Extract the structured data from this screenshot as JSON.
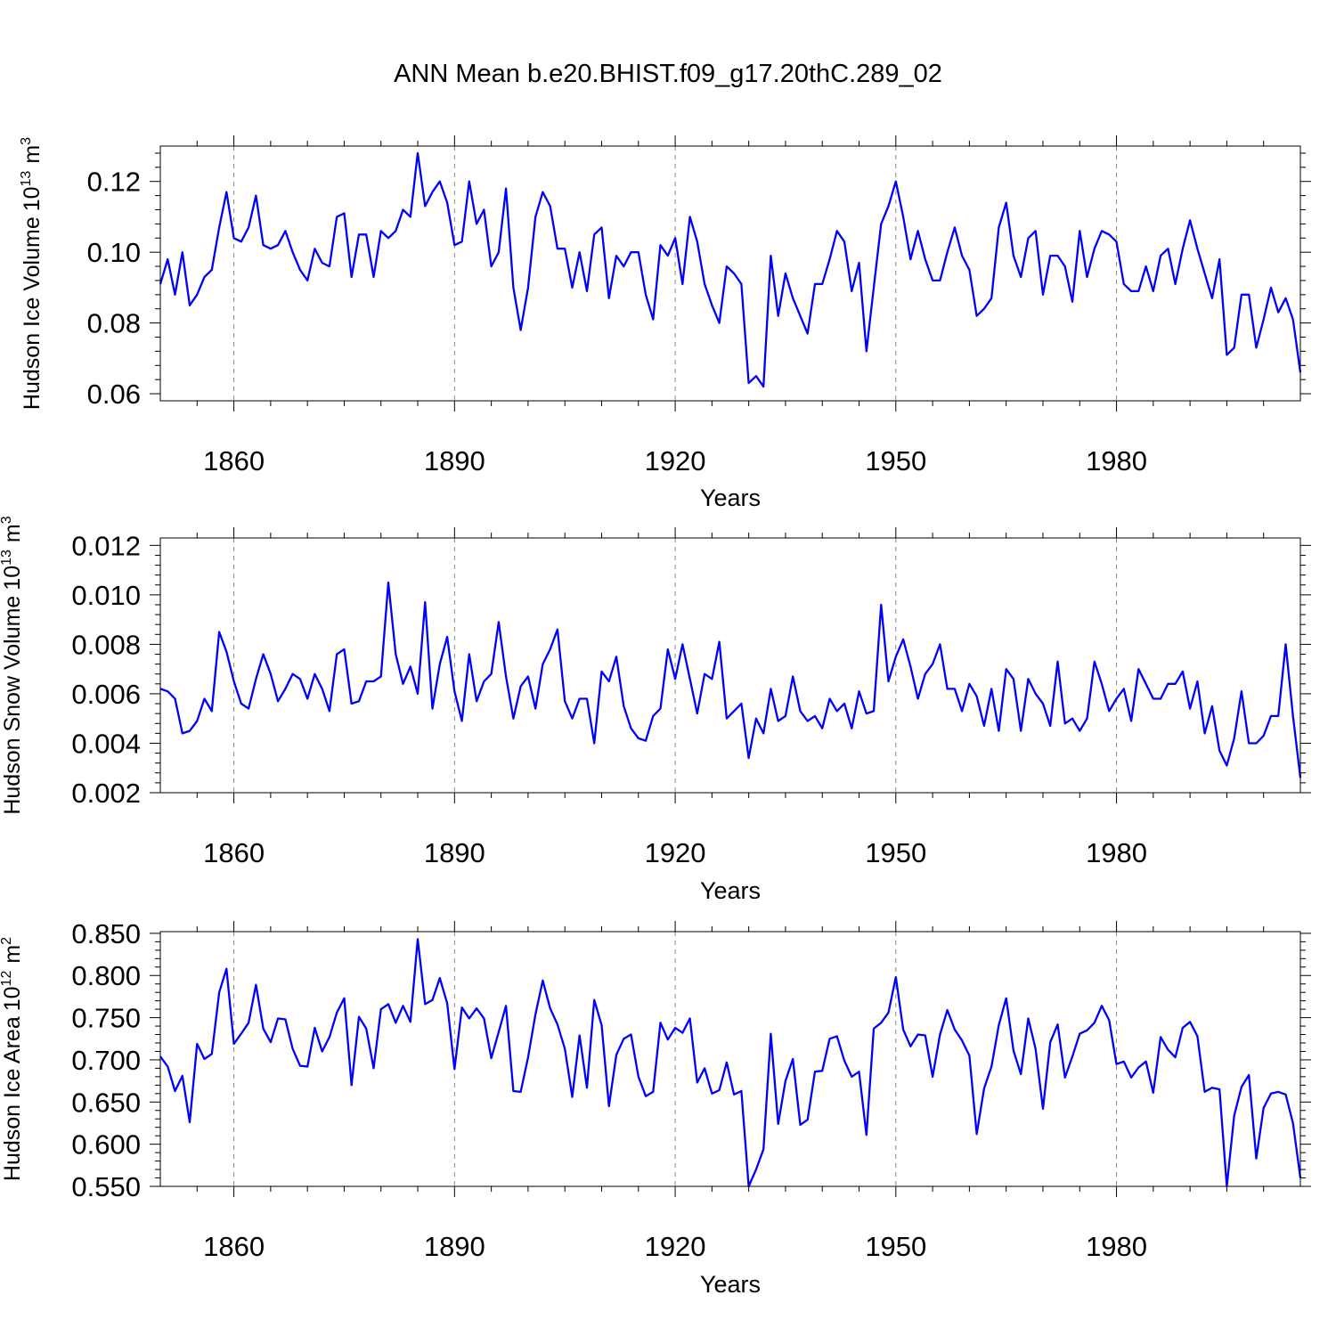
{
  "figure": {
    "title": "ANN Mean b.e20.BHIST.f09_g17.20thC.289_02",
    "line_color": "#0000ff",
    "grid_color": "#888888"
  },
  "chart_data": [
    {
      "type": "line",
      "ylabel": "Hudson Ice Volume",
      "ylabel_unit_base": "10",
      "ylabel_unit_exp": "13",
      "ylabel_unit": "m",
      "ylabel_unit_unit_exp": "3",
      "xlabel": "Years",
      "xlim": [
        1850,
        2005
      ],
      "ylim": [
        0.058,
        0.13
      ],
      "xticks": [
        1860,
        1890,
        1920,
        1950,
        1980
      ],
      "xtick_labels": [
        "1860",
        "1890",
        "1920",
        "1950",
        "1980"
      ],
      "yticks": [
        0.06,
        0.08,
        0.1,
        0.12
      ],
      "ytick_labels": [
        "0.06",
        "0.08",
        "0.10",
        "0.12"
      ],
      "grid": "vertical dashed at major x ticks",
      "series": [
        {
          "x_start": 1850,
          "values": [
            0.091,
            0.098,
            0.088,
            0.1,
            0.085,
            0.088,
            0.093,
            0.095,
            0.107,
            0.117,
            0.104,
            0.103,
            0.107,
            0.116,
            0.102,
            0.101,
            0.102,
            0.106,
            0.1,
            0.095,
            0.092,
            0.101,
            0.097,
            0.096,
            0.11,
            0.111,
            0.093,
            0.105,
            0.105,
            0.093,
            0.106,
            0.104,
            0.106,
            0.112,
            0.11,
            0.128,
            0.113,
            0.117,
            0.12,
            0.114,
            0.102,
            0.103,
            0.12,
            0.108,
            0.112,
            0.096,
            0.1,
            0.118,
            0.09,
            0.078,
            0.09,
            0.11,
            0.117,
            0.113,
            0.101,
            0.101,
            0.09,
            0.1,
            0.089,
            0.105,
            0.107,
            0.087,
            0.099,
            0.096,
            0.1,
            0.1,
            0.088,
            0.081,
            0.102,
            0.099,
            0.104,
            0.091,
            0.11,
            0.103,
            0.091,
            0.085,
            0.08,
            0.096,
            0.094,
            0.091,
            0.063,
            0.065,
            0.062,
            0.099,
            0.082,
            0.094,
            0.087,
            0.082,
            0.077,
            0.091,
            0.091,
            0.098,
            0.106,
            0.103,
            0.089,
            0.097,
            0.072,
            0.09,
            0.108,
            0.113,
            0.12,
            0.11,
            0.098,
            0.106,
            0.098,
            0.092,
            0.092,
            0.1,
            0.107,
            0.099,
            0.095,
            0.082,
            0.084,
            0.087,
            0.107,
            0.114,
            0.099,
            0.093,
            0.104,
            0.106,
            0.088,
            0.099,
            0.099,
            0.096,
            0.086,
            0.106,
            0.093,
            0.101,
            0.106,
            0.105,
            0.103,
            0.091,
            0.089,
            0.089,
            0.096,
            0.089,
            0.099,
            0.101,
            0.091,
            0.101,
            0.109,
            0.101,
            0.094,
            0.087,
            0.098,
            0.071,
            0.073,
            0.088,
            0.088,
            0.073,
            0.081,
            0.09,
            0.083,
            0.087,
            0.081,
            0.066
          ]
        }
      ]
    },
    {
      "type": "line",
      "ylabel": "Hudson Snow Volume",
      "ylabel_unit_base": "10",
      "ylabel_unit_exp": "13",
      "ylabel_unit": "m",
      "ylabel_unit_unit_exp": "3",
      "xlabel": "Years",
      "xlim": [
        1850,
        2005
      ],
      "ylim": [
        0.002,
        0.0123
      ],
      "xticks": [
        1860,
        1890,
        1920,
        1950,
        1980
      ],
      "xtick_labels": [
        "1860",
        "1890",
        "1920",
        "1950",
        "1980"
      ],
      "yticks": [
        0.002,
        0.004,
        0.006,
        0.008,
        0.01,
        0.012
      ],
      "ytick_labels": [
        "0.002",
        "0.004",
        "0.006",
        "0.008",
        "0.010",
        "0.012"
      ],
      "grid": "vertical dashed at major x ticks",
      "series": [
        {
          "x_start": 1850,
          "values": [
            0.0062,
            0.0061,
            0.0058,
            0.0044,
            0.0045,
            0.0049,
            0.0058,
            0.0053,
            0.0085,
            0.0077,
            0.0065,
            0.0056,
            0.0054,
            0.0066,
            0.0076,
            0.0068,
            0.0057,
            0.0062,
            0.0068,
            0.0066,
            0.0058,
            0.0068,
            0.0062,
            0.0053,
            0.0076,
            0.0078,
            0.0056,
            0.0057,
            0.0065,
            0.0065,
            0.0067,
            0.0105,
            0.0076,
            0.0064,
            0.0071,
            0.006,
            0.0097,
            0.0054,
            0.0072,
            0.0083,
            0.0061,
            0.0049,
            0.0076,
            0.0057,
            0.0065,
            0.0068,
            0.0089,
            0.0067,
            0.005,
            0.0063,
            0.0067,
            0.0054,
            0.0072,
            0.0078,
            0.0086,
            0.0057,
            0.005,
            0.0058,
            0.0058,
            0.004,
            0.0069,
            0.0065,
            0.0075,
            0.0055,
            0.0046,
            0.0042,
            0.0041,
            0.0051,
            0.0054,
            0.0078,
            0.0066,
            0.008,
            0.0066,
            0.0052,
            0.0068,
            0.0066,
            0.0081,
            0.005,
            0.0053,
            0.0056,
            0.0034,
            0.005,
            0.0044,
            0.0062,
            0.0049,
            0.0051,
            0.0067,
            0.0053,
            0.0049,
            0.0051,
            0.0046,
            0.0058,
            0.0053,
            0.0056,
            0.0046,
            0.0061,
            0.0052,
            0.0053,
            0.0096,
            0.0065,
            0.0075,
            0.0082,
            0.0071,
            0.0058,
            0.0068,
            0.0072,
            0.008,
            0.0062,
            0.0062,
            0.0053,
            0.0064,
            0.0059,
            0.0047,
            0.0062,
            0.0045,
            0.007,
            0.0066,
            0.0045,
            0.0066,
            0.006,
            0.0056,
            0.0047,
            0.0073,
            0.0048,
            0.005,
            0.0045,
            0.005,
            0.0073,
            0.0064,
            0.0053,
            0.0058,
            0.0062,
            0.0049,
            0.007,
            0.0064,
            0.0058,
            0.0058,
            0.0064,
            0.0064,
            0.0069,
            0.0054,
            0.0065,
            0.0044,
            0.0055,
            0.0037,
            0.0031,
            0.0042,
            0.0061,
            0.004,
            0.004,
            0.0043,
            0.0051,
            0.0051,
            0.008,
            0.0051,
            0.0026
          ]
        }
      ]
    },
    {
      "type": "line",
      "ylabel": "Hudson Ice Area",
      "ylabel_unit_base": "10",
      "ylabel_unit_exp": "12",
      "ylabel_unit": "m",
      "ylabel_unit_unit_exp": "2",
      "xlabel": "Years",
      "xlim": [
        1850,
        2005
      ],
      "ylim": [
        0.55,
        0.852
      ],
      "xticks": [
        1860,
        1890,
        1920,
        1950,
        1980
      ],
      "xtick_labels": [
        "1860",
        "1890",
        "1920",
        "1950",
        "1980"
      ],
      "yticks": [
        0.55,
        0.6,
        0.65,
        0.7,
        0.75,
        0.8,
        0.85
      ],
      "ytick_labels": [
        "0.550",
        "0.600",
        "0.650",
        "0.700",
        "0.750",
        "0.800",
        "0.850"
      ],
      "grid": "vertical dashed at major x ticks",
      "series": [
        {
          "x_start": 1850,
          "values": [
            0.704,
            0.692,
            0.663,
            0.681,
            0.626,
            0.719,
            0.701,
            0.707,
            0.78,
            0.808,
            0.719,
            0.731,
            0.744,
            0.789,
            0.737,
            0.721,
            0.749,
            0.748,
            0.713,
            0.693,
            0.692,
            0.738,
            0.71,
            0.727,
            0.756,
            0.773,
            0.67,
            0.751,
            0.737,
            0.69,
            0.76,
            0.766,
            0.744,
            0.764,
            0.745,
            0.843,
            0.766,
            0.771,
            0.797,
            0.767,
            0.689,
            0.762,
            0.749,
            0.761,
            0.749,
            0.702,
            0.733,
            0.764,
            0.663,
            0.662,
            0.703,
            0.754,
            0.794,
            0.761,
            0.742,
            0.713,
            0.656,
            0.729,
            0.667,
            0.771,
            0.741,
            0.645,
            0.706,
            0.725,
            0.73,
            0.68,
            0.657,
            0.662,
            0.744,
            0.724,
            0.738,
            0.732,
            0.749,
            0.673,
            0.69,
            0.66,
            0.664,
            0.697,
            0.659,
            0.663,
            0.55,
            0.57,
            0.594,
            0.731,
            0.624,
            0.675,
            0.701,
            0.623,
            0.629,
            0.686,
            0.687,
            0.725,
            0.728,
            0.699,
            0.68,
            0.686,
            0.611,
            0.737,
            0.744,
            0.756,
            0.798,
            0.736,
            0.716,
            0.73,
            0.729,
            0.68,
            0.73,
            0.759,
            0.736,
            0.723,
            0.705,
            0.612,
            0.666,
            0.692,
            0.741,
            0.773,
            0.711,
            0.683,
            0.749,
            0.713,
            0.642,
            0.721,
            0.742,
            0.679,
            0.704,
            0.731,
            0.735,
            0.744,
            0.764,
            0.747,
            0.695,
            0.698,
            0.679,
            0.691,
            0.698,
            0.661,
            0.727,
            0.712,
            0.703,
            0.738,
            0.745,
            0.728,
            0.662,
            0.667,
            0.665,
            0.55,
            0.634,
            0.668,
            0.682,
            0.583,
            0.643,
            0.66,
            0.662,
            0.659,
            0.625,
            0.56
          ]
        }
      ]
    }
  ]
}
